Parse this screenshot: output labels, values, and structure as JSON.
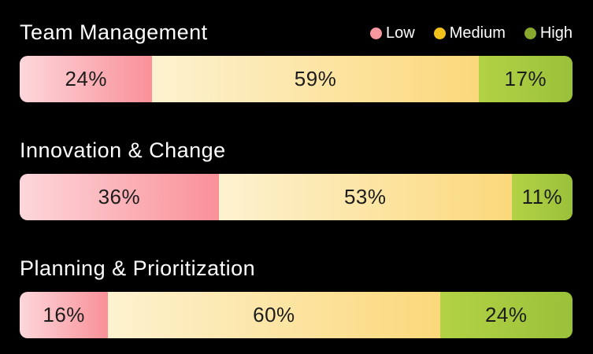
{
  "colors": {
    "background": "#000000",
    "title_text": "#ffffff",
    "segment_label_text": "#1c1c1c",
    "low_gradient": [
      "#fcd7db",
      "#fa9098"
    ],
    "medium_gradient": [
      "#fdf2d0",
      "#fbd87b"
    ],
    "high_gradient": [
      "#b3d245",
      "#9ac13a"
    ],
    "legend_dot_low": "#f8979e",
    "legend_dot_medium": "#f2c11b",
    "legend_dot_high": "#87a82c"
  },
  "legend": [
    {
      "key": "low",
      "label": "Low",
      "dot_color": "#f8979e"
    },
    {
      "key": "medium",
      "label": "Medium",
      "dot_color": "#f2c11b"
    },
    {
      "key": "high",
      "label": "High",
      "dot_color": "#87a82c"
    }
  ],
  "chart_data": {
    "type": "bar",
    "subtype": "horizontal-stacked-100-percent",
    "categories": [
      "Team Management",
      "Innovation & Change",
      "Planning & Prioritization"
    ],
    "series": [
      {
        "name": "Low",
        "values": [
          24,
          36,
          16
        ]
      },
      {
        "name": "Medium",
        "values": [
          59,
          53,
          60
        ]
      },
      {
        "name": "High",
        "values": [
          17,
          11,
          24
        ]
      }
    ],
    "value_format": "percent",
    "xlim": [
      0,
      100
    ],
    "grid": false,
    "legend_position": "top-right",
    "background": "#000000"
  },
  "sections": [
    {
      "title": "Team Management",
      "segments": [
        {
          "name": "Low",
          "value": 24,
          "label": "24%",
          "key": "low"
        },
        {
          "name": "Medium",
          "value": 59,
          "label": "59%",
          "key": "medium"
        },
        {
          "name": "High",
          "value": 17,
          "label": "17%",
          "key": "high"
        }
      ]
    },
    {
      "title": "Innovation & Change",
      "segments": [
        {
          "name": "Low",
          "value": 36,
          "label": "36%",
          "key": "low"
        },
        {
          "name": "Medium",
          "value": 53,
          "label": "53%",
          "key": "medium"
        },
        {
          "name": "High",
          "value": 11,
          "label": "11%",
          "key": "high"
        }
      ]
    },
    {
      "title": "Planning & Prioritization",
      "segments": [
        {
          "name": "Low",
          "value": 16,
          "label": "16%",
          "key": "low"
        },
        {
          "name": "Medium",
          "value": 60,
          "label": "60%",
          "key": "medium"
        },
        {
          "name": "High",
          "value": 24,
          "label": "24%",
          "key": "high"
        }
      ]
    }
  ]
}
